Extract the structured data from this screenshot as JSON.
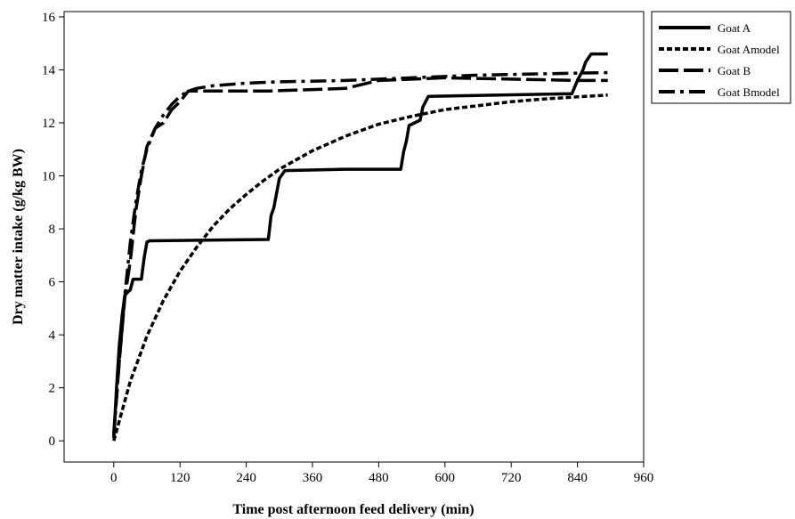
{
  "chart_data": {
    "type": "line",
    "xlabel": "Time post afternoon feed delivery (min)",
    "ylabel": "Dry matter intake (g/kg BW)",
    "xlim": [
      -90,
      960
    ],
    "ylim": [
      -0.8,
      16.2
    ],
    "xticks": [
      0,
      120,
      240,
      360,
      480,
      600,
      720,
      840,
      960
    ],
    "yticks": [
      0,
      2,
      4,
      6,
      8,
      10,
      12,
      14,
      16
    ],
    "grid": false,
    "legend_position": "outside-top-right",
    "series": [
      {
        "name": "Goat A",
        "style": "solid",
        "color": "#000000",
        "points": [
          [
            0,
            0.1
          ],
          [
            5,
            2.0
          ],
          [
            10,
            3.6
          ],
          [
            15,
            4.7
          ],
          [
            20,
            5.5
          ],
          [
            25,
            5.6
          ],
          [
            30,
            5.7
          ],
          [
            35,
            6.1
          ],
          [
            50,
            6.1
          ],
          [
            55,
            6.9
          ],
          [
            60,
            7.5
          ],
          [
            65,
            7.55
          ],
          [
            280,
            7.6
          ],
          [
            285,
            8.5
          ],
          [
            290,
            8.8
          ],
          [
            300,
            9.9
          ],
          [
            310,
            10.2
          ],
          [
            420,
            10.25
          ],
          [
            520,
            10.25
          ],
          [
            525,
            10.9
          ],
          [
            530,
            11.3
          ],
          [
            535,
            11.9
          ],
          [
            545,
            12.0
          ],
          [
            555,
            12.1
          ],
          [
            560,
            12.6
          ],
          [
            570,
            13.0
          ],
          [
            700,
            13.05
          ],
          [
            830,
            13.1
          ],
          [
            840,
            13.6
          ],
          [
            850,
            14.0
          ],
          [
            855,
            14.3
          ],
          [
            865,
            14.6
          ],
          [
            895,
            14.6
          ]
        ]
      },
      {
        "name": "Goat Amodel",
        "style": "dotted",
        "color": "#000000",
        "points": [
          [
            0,
            0
          ],
          [
            30,
            2.25
          ],
          [
            60,
            3.95
          ],
          [
            90,
            5.3
          ],
          [
            120,
            6.4
          ],
          [
            150,
            7.3
          ],
          [
            180,
            8.1
          ],
          [
            210,
            8.75
          ],
          [
            240,
            9.3
          ],
          [
            270,
            9.8
          ],
          [
            300,
            10.25
          ],
          [
            330,
            10.6
          ],
          [
            360,
            10.95
          ],
          [
            420,
            11.5
          ],
          [
            480,
            11.95
          ],
          [
            540,
            12.25
          ],
          [
            600,
            12.5
          ],
          [
            660,
            12.65
          ],
          [
            720,
            12.8
          ],
          [
            780,
            12.9
          ],
          [
            840,
            12.98
          ],
          [
            895,
            13.05
          ]
        ]
      },
      {
        "name": "Goat B",
        "style": "long-dash",
        "color": "#000000",
        "points": [
          [
            0,
            0.3
          ],
          [
            10,
            3.0
          ],
          [
            20,
            5.4
          ],
          [
            30,
            6.8
          ],
          [
            40,
            8.7
          ],
          [
            50,
            10.0
          ],
          [
            60,
            11.1
          ],
          [
            75,
            11.8
          ],
          [
            90,
            12.0
          ],
          [
            105,
            12.5
          ],
          [
            120,
            12.8
          ],
          [
            135,
            13.2
          ],
          [
            160,
            13.2
          ],
          [
            280,
            13.2
          ],
          [
            420,
            13.3
          ],
          [
            480,
            13.6
          ],
          [
            600,
            13.7
          ],
          [
            840,
            13.6
          ],
          [
            895,
            13.6
          ]
        ]
      },
      {
        "name": "Goat Bmodel",
        "style": "dash-dot",
        "color": "#000000",
        "points": [
          [
            0,
            0.2
          ],
          [
            10,
            3.0
          ],
          [
            20,
            5.5
          ],
          [
            30,
            7.5
          ],
          [
            40,
            9.0
          ],
          [
            50,
            10.2
          ],
          [
            60,
            11.0
          ],
          [
            75,
            11.8
          ],
          [
            90,
            12.3
          ],
          [
            105,
            12.7
          ],
          [
            120,
            13.0
          ],
          [
            135,
            13.2
          ],
          [
            150,
            13.3
          ],
          [
            180,
            13.4
          ],
          [
            240,
            13.5
          ],
          [
            300,
            13.55
          ],
          [
            420,
            13.6
          ],
          [
            540,
            13.7
          ],
          [
            660,
            13.8
          ],
          [
            780,
            13.85
          ],
          [
            895,
            13.9
          ]
        ]
      }
    ]
  }
}
